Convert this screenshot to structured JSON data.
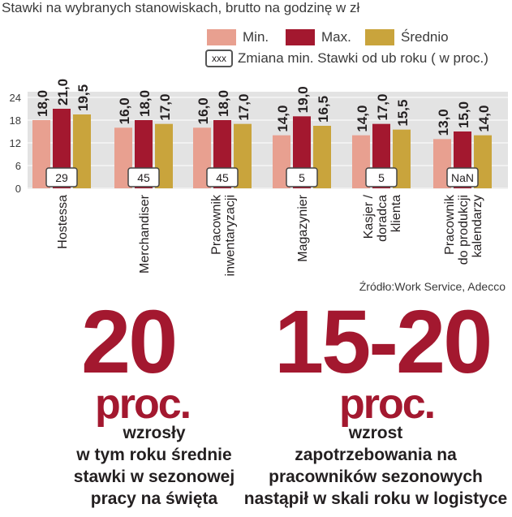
{
  "header": {
    "title": "Stawki na wybranych stanowiskach, brutto na godzinę w zł",
    "legend": [
      {
        "label": "Min.",
        "color": "#e8a090"
      },
      {
        "label": "Max.",
        "color": "#a3182f"
      },
      {
        "label": "Średnio",
        "color": "#c9a43c"
      }
    ],
    "change_box_text": "xxx",
    "change_legend": "Zmiana min. Stawki od ub roku ( w proc.)"
  },
  "chart_data": {
    "type": "bar",
    "title": "Stawki na wybranych stanowiskach, brutto na godzinę w zł",
    "categories": [
      "Hostessa",
      "Merchandiser",
      "Pracownik\ninwentaryzacji",
      "Magazynier",
      "Kasjer /\ndoradca\nklienta",
      "Pracownik\ndo produkcji\nkalendarzy"
    ],
    "series": [
      {
        "name": "Min.",
        "color": "#e8a090",
        "values": [
          18.0,
          16.0,
          16.0,
          14.0,
          14.0,
          13.0
        ],
        "labels": [
          "18,0",
          "16,0",
          "16,0",
          "14,0",
          "14,0",
          "13,0"
        ]
      },
      {
        "name": "Max.",
        "color": "#a3182f",
        "values": [
          21.0,
          18.0,
          18.0,
          19.0,
          17.0,
          15.0
        ],
        "labels": [
          "21,0",
          "18,0",
          "18,0",
          "19,0",
          "17,0",
          "15,0"
        ]
      },
      {
        "name": "Średnio",
        "color": "#c9a43c",
        "values": [
          19.5,
          17.0,
          17.0,
          16.5,
          15.5,
          14.0
        ],
        "labels": [
          "19,5",
          "17,0",
          "17,0",
          "16,5",
          "15,5",
          "14,0"
        ]
      }
    ],
    "change_labels": [
      "29",
      "45",
      "45",
      "5",
      "5",
      "NaN"
    ],
    "yticks": [
      "0",
      "6",
      "12",
      "18",
      "24"
    ],
    "ylim": [
      0,
      24
    ],
    "grid": true
  },
  "source": "Źródło:Work Service, Adecco",
  "stats": [
    {
      "number": "20",
      "unit": "proc.",
      "caption": [
        "wzrosły",
        "w tym roku średnie",
        "stawki w sezonowej",
        "pracy na święta"
      ]
    },
    {
      "number": "15-20",
      "unit": "proc.",
      "caption": [
        "wzrost",
        "zapotrzebowania na",
        "pracowników sezonowych",
        "nastąpił w skali roku w logistyce"
      ]
    }
  ]
}
